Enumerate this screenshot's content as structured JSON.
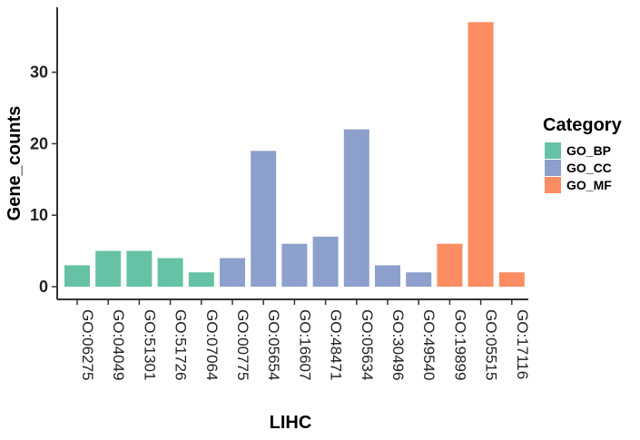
{
  "chart_data": {
    "type": "bar",
    "xlabel": "LIHC",
    "ylabel": "Gene_counts",
    "ylim": [
      0,
      38
    ],
    "yticks": [
      0,
      10,
      20,
      30
    ],
    "grid": false,
    "legend_position": "right",
    "legend_title": "Category",
    "categories": [
      "GO:06275",
      "GO:04049",
      "GO:51301",
      "GO:51726",
      "GO:07064",
      "GO:00775",
      "GO:05654",
      "GO:16607",
      "GO:48471",
      "GO:05634",
      "GO:30496",
      "GO:49540",
      "GO:19899",
      "GO:05515",
      "GO:17116"
    ],
    "values": [
      3,
      5,
      5,
      4,
      2,
      4,
      19,
      6,
      7,
      22,
      3,
      2,
      6,
      37,
      2
    ],
    "groups": [
      "GO_BP",
      "GO_BP",
      "GO_BP",
      "GO_BP",
      "GO_BP",
      "GO_CC",
      "GO_CC",
      "GO_CC",
      "GO_CC",
      "GO_CC",
      "GO_CC",
      "GO_CC",
      "GO_MF",
      "GO_MF",
      "GO_MF"
    ],
    "legend": [
      {
        "name": "GO_BP",
        "color": "#66c2a5"
      },
      {
        "name": "GO_CC",
        "color": "#8da0cb"
      },
      {
        "name": "GO_MF",
        "color": "#fc8d62"
      }
    ]
  }
}
